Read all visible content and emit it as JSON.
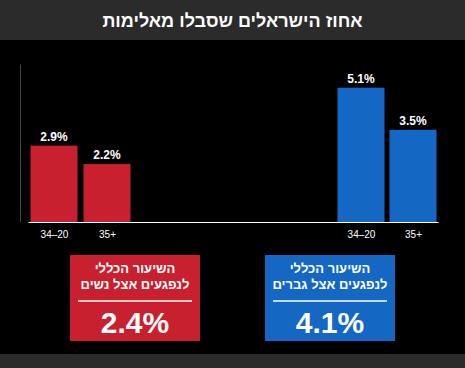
{
  "chart_data": {
    "type": "bar",
    "title": "אחוז הישראלים שסבלו מאלימות",
    "categories": [
      "34–20",
      "35+",
      "34–20",
      "35+"
    ],
    "values": [
      2.9,
      2.2,
      5.1,
      3.5
    ],
    "value_labels": [
      "2.9%",
      "2.2%",
      "5.1%",
      "3.5%"
    ],
    "colors": [
      "#c8202f",
      "#c8202f",
      "#1468c4",
      "#1468c4"
    ],
    "ylim": [
      0,
      6
    ],
    "yticks": [],
    "data_labels": true,
    "tick_labels": "x",
    "grid": false,
    "annotations": [
      {
        "text": [
          "השיעור הכללי",
          "לנפגעים אצל נשים"
        ],
        "value": 2.4,
        "label": "2.4%"
      },
      {
        "text": [
          "השיעור הכללי",
          "לנפגעים אצל גברים"
        ],
        "value": 4.1,
        "label": "4.1%"
      }
    ]
  }
}
